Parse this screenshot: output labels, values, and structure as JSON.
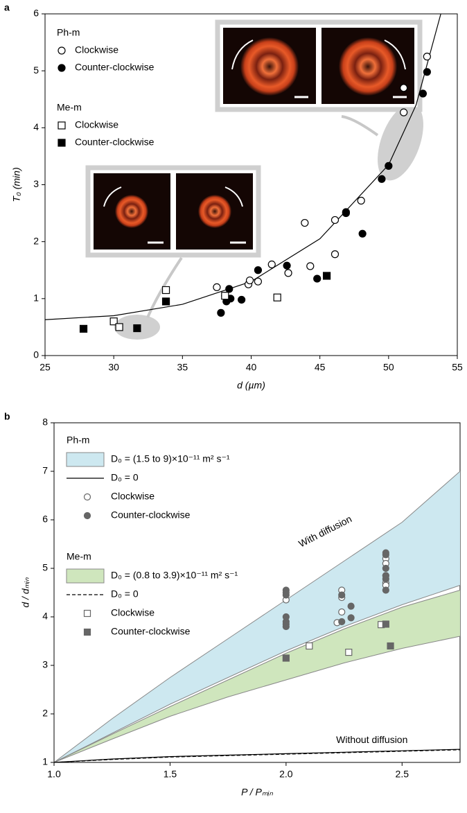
{
  "chart_data": [
    {
      "type": "scatter",
      "panel": "a",
      "xlabel": "d (µm)",
      "ylabel": "T₀ (min)",
      "xlim": [
        25,
        55
      ],
      "ylim": [
        0,
        6
      ],
      "xticks": [
        25,
        30,
        35,
        40,
        45,
        50,
        55
      ],
      "yticks": [
        0,
        1,
        2,
        3,
        4,
        5,
        6
      ],
      "legend_groups": [
        "Ph-m",
        "Me-m"
      ],
      "series": [
        {
          "type": "line",
          "color": "#000000",
          "x": [
            25,
            30,
            35,
            40,
            45,
            50,
            52,
            53.8
          ],
          "values": [
            0.63,
            0.7,
            0.9,
            1.3,
            2.05,
            3.35,
            4.4,
            6
          ]
        },
        {
          "name": "Clockwise",
          "group": 0,
          "marker": "circle-open",
          "color": "#000000",
          "x": [
            37.5,
            38.1,
            39.8,
            39.9,
            40.5,
            41.5,
            42.7,
            43.9,
            44.3,
            46.1,
            46.1,
            48,
            51.1,
            51.1,
            52.8
          ],
          "values": [
            1.2,
            1.05,
            1.25,
            1.32,
            1.3,
            1.6,
            1.45,
            2.33,
            1.57,
            2.38,
            1.78,
            2.72,
            4.7,
            4.27,
            5.25
          ]
        },
        {
          "name": "Counter-clockwise",
          "group": 0,
          "marker": "circle-filled",
          "color": "#000000",
          "x": [
            37.8,
            38.2,
            38.4,
            38.5,
            39.3,
            40.5,
            42.6,
            44.8,
            46.9,
            46.9,
            48.1,
            49.5,
            50,
            52.5,
            52.8
          ],
          "values": [
            0.75,
            0.95,
            1.17,
            1.0,
            0.98,
            1.5,
            1.58,
            1.35,
            2.5,
            2.52,
            2.14,
            3.1,
            3.33,
            4.6,
            4.98
          ]
        },
        {
          "name": "Clockwise",
          "group": 1,
          "marker": "square-open",
          "color": "#000000",
          "x": [
            30,
            30.4,
            33.8,
            38.1,
            41.9
          ],
          "values": [
            0.6,
            0.5,
            1.15,
            1.05,
            1.02
          ]
        },
        {
          "name": "Counter-clockwise",
          "group": 1,
          "marker": "square-filled",
          "color": "#000000",
          "x": [
            27.8,
            31.7,
            33.8,
            45.5
          ],
          "values": [
            0.47,
            0.48,
            0.95,
            1.4
          ]
        }
      ]
    },
    {
      "type": "scatter",
      "panel": "b",
      "xlabel": "P / Pₘᵢₙ",
      "ylabel": "d / dₘᵢₙ",
      "xlim": [
        1,
        2.75
      ],
      "ylim": [
        1,
        8
      ],
      "xticks": [
        {
          "value": 1,
          "label": "1.0"
        },
        1.5,
        {
          "value": 2,
          "label": "2.0"
        },
        2.5
      ],
      "yticks": [
        1,
        2,
        3,
        4,
        5,
        6,
        7,
        8
      ],
      "legend_groups": [
        "Ph-m",
        "Me-m"
      ],
      "annotations": [
        "With diffusion",
        "Without diffusion"
      ],
      "series": [
        {
          "name": "D₀ = (1.5 to 9)×10⁻¹¹ m² s⁻¹",
          "group": 0,
          "type": "band",
          "color": "#cde8f0",
          "x": [
            1,
            1.25,
            1.5,
            1.75,
            2,
            2.25,
            2.5,
            2.75
          ],
          "upper": [
            1,
            1.9,
            2.75,
            3.55,
            4.35,
            5.15,
            5.95,
            7.0
          ],
          "lower": [
            1,
            1.6,
            2.2,
            2.75,
            3.3,
            3.8,
            4.25,
            4.65
          ]
        },
        {
          "name": "D₀ = 0",
          "group": 0,
          "type": "line",
          "color": "#000000",
          "x": [
            1,
            1.25,
            1.5,
            1.75,
            2,
            2.25,
            2.5,
            2.75
          ],
          "values": [
            1,
            1.07,
            1.12,
            1.15,
            1.18,
            1.21,
            1.24,
            1.27
          ]
        },
        {
          "name": "Clockwise",
          "group": 0,
          "marker": "circle-open",
          "color": "#666666",
          "x": [
            2,
            2,
            2.24,
            2.24,
            2.24,
            2.22,
            2.43,
            2.43,
            2.43,
            2.43,
            2.43
          ],
          "values": [
            4.5,
            4.35,
            4.55,
            4.4,
            4.1,
            3.88,
            5.2,
            5.1,
            4.85,
            4.7,
            4.65
          ]
        },
        {
          "name": "Counter-clockwise",
          "group": 0,
          "marker": "circle-filled",
          "color": "#666666",
          "x": [
            2,
            2,
            2,
            2,
            2,
            2,
            2.24,
            2.24,
            2.28,
            2.28,
            2.43,
            2.43,
            2.43,
            2.43,
            2.43,
            2.43
          ],
          "values": [
            4.55,
            4.45,
            4.0,
            3.9,
            3.85,
            3.8,
            4.45,
            3.9,
            4.22,
            3.98,
            5.32,
            5.28,
            5.0,
            4.85,
            4.78,
            4.55
          ]
        },
        {
          "name": "D₀ = (0.8 to 3.9)×10⁻¹¹ m² s⁻¹",
          "group": 1,
          "type": "band",
          "color": "#cfe6bd",
          "x": [
            1,
            1.25,
            1.5,
            1.75,
            2,
            2.25,
            2.5,
            2.75
          ],
          "upper": [
            1,
            1.58,
            2.15,
            2.7,
            3.25,
            3.75,
            4.2,
            4.55
          ],
          "lower": [
            1,
            1.48,
            1.95,
            2.35,
            2.7,
            3.05,
            3.35,
            3.6
          ]
        },
        {
          "name": "D₀ = 0",
          "group": 1,
          "type": "line",
          "dash": true,
          "color": "#000000",
          "x": [
            1,
            1.25,
            1.5,
            1.75,
            2,
            2.25,
            2.5,
            2.75
          ],
          "values": [
            1,
            1.06,
            1.11,
            1.14,
            1.17,
            1.2,
            1.23,
            1.26
          ]
        },
        {
          "name": "Clockwise",
          "group": 1,
          "marker": "square-open",
          "color": "#666666",
          "x": [
            2.1,
            2.27,
            2.41
          ],
          "values": [
            3.4,
            3.27,
            3.84
          ]
        },
        {
          "name": "Counter-clockwise",
          "group": 1,
          "marker": "square-filled",
          "color": "#666666",
          "x": [
            2,
            2.43,
            2.45
          ],
          "values": [
            3.15,
            3.85,
            3.4
          ]
        }
      ]
    }
  ]
}
